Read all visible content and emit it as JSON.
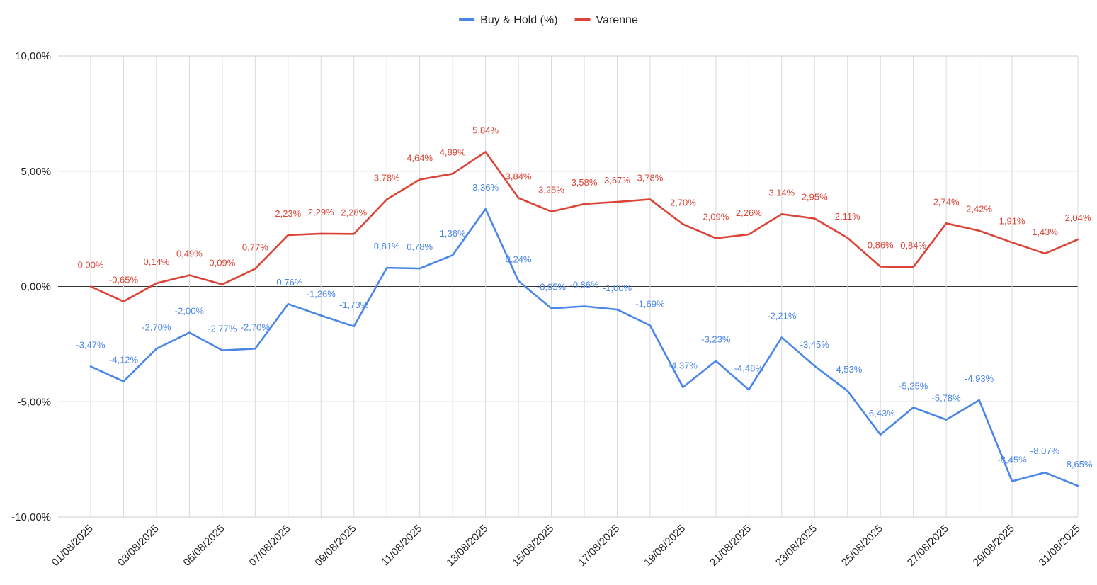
{
  "chart_data": {
    "type": "line",
    "x": [
      "01/08/2025",
      "02/08/2025",
      "03/08/2025",
      "04/08/2025",
      "05/08/2025",
      "06/08/2025",
      "07/08/2025",
      "08/08/2025",
      "09/08/2025",
      "10/08/2025",
      "11/08/2025",
      "12/08/2025",
      "13/08/2025",
      "14/08/2025",
      "15/08/2025",
      "16/08/2025",
      "17/08/2025",
      "18/08/2025",
      "19/08/2025",
      "20/08/2025",
      "21/08/2025",
      "22/08/2025",
      "23/08/2025",
      "24/08/2025",
      "25/08/2025",
      "26/08/2025",
      "27/08/2025",
      "28/08/2025",
      "29/08/2025",
      "30/08/2025",
      "31/08/2025"
    ],
    "x_tick_labels": [
      "01/08/2025",
      "03/08/2025",
      "05/08/2025",
      "07/08/2025",
      "09/08/2025",
      "11/08/2025",
      "13/08/2025",
      "15/08/2025",
      "17/08/2025",
      "19/08/2025",
      "21/08/2025",
      "23/08/2025",
      "25/08/2025",
      "27/08/2025",
      "29/08/2025",
      "31/08/2025"
    ],
    "y_tick_labels": [
      "10,00%",
      "5,00%",
      "0,00%",
      "-5,00%",
      "-10,00%"
    ],
    "y_ticks": [
      10,
      5,
      0,
      -5,
      -10
    ],
    "ylim": [
      -10,
      10
    ],
    "grid": true,
    "legend_position": "top-center",
    "series": [
      {
        "name": "Buy & Hold (%)",
        "color": "#4a86e8",
        "values": [
          -3.47,
          -4.12,
          -2.7,
          -2.0,
          -2.77,
          -2.7,
          -0.76,
          -1.26,
          -1.73,
          0.81,
          0.78,
          1.36,
          3.36,
          0.24,
          -0.95,
          -0.86,
          -1.0,
          -1.69,
          -4.37,
          -3.23,
          -4.48,
          -2.21,
          -3.45,
          -4.53,
          -6.43,
          -5.25,
          -5.78,
          -4.93,
          -8.45,
          -8.07,
          -8.65
        ],
        "labels": [
          "-3,47%",
          "-4,12%",
          "-2,70%",
          "-2,00%",
          "-2,77%",
          "-2,70%",
          "-0,76%",
          "-1,26%",
          "-1,73%",
          "0,81%",
          "0,78%",
          "1,36%",
          "3,36%",
          "0,24%",
          "-0,95%",
          "-0,86%",
          "-1,00%",
          "-1,69%",
          "-4,37%",
          "-3,23%",
          "-4,48%",
          "-2,21%",
          "-3,45%",
          "-4,53%",
          "-6,43%",
          "-5,25%",
          "-5,78%",
          "-4,93%",
          "-8,45%",
          "-8,07%",
          "-8,65%"
        ]
      },
      {
        "name": "Varenne",
        "color": "#db4437",
        "values": [
          0.0,
          -0.65,
          0.14,
          0.49,
          0.09,
          0.77,
          2.23,
          2.29,
          2.28,
          3.78,
          4.64,
          4.89,
          5.84,
          3.84,
          3.25,
          3.58,
          3.67,
          3.78,
          2.7,
          2.09,
          2.26,
          3.14,
          2.95,
          2.11,
          0.86,
          0.84,
          2.74,
          2.42,
          1.91,
          1.43,
          2.04
        ],
        "labels": [
          "0,00%",
          "-0,65%",
          "0,14%",
          "0,49%",
          "0,09%",
          "0,77%",
          "2,23%",
          "2,29%",
          "2,28%",
          "3,78%",
          "4,64%",
          "4,89%",
          "5,84%",
          "3,84%",
          "3,25%",
          "3,58%",
          "3,67%",
          "3,78%",
          "2,70%",
          "2,09%",
          "2,26%",
          "3,14%",
          "2,95%",
          "2,11%",
          "0,86%",
          "0,84%",
          "2,74%",
          "2,42%",
          "1,91%",
          "1,43%",
          "2,04%"
        ]
      }
    ]
  }
}
